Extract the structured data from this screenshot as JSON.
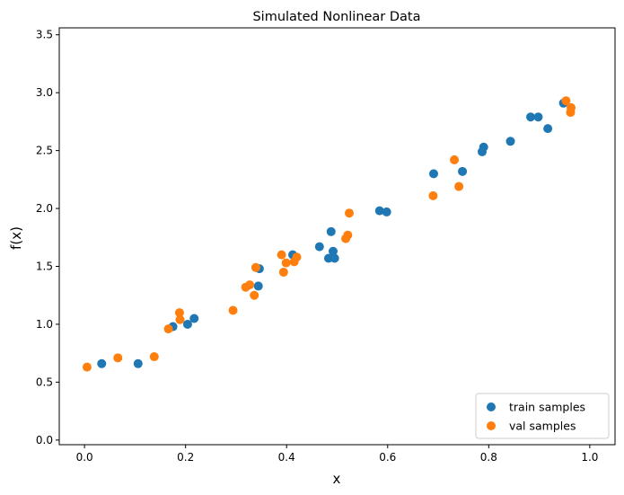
{
  "chart_data": {
    "type": "scatter",
    "title": "Simulated Nonlinear Data",
    "xlabel": "x",
    "ylabel": "f(x)",
    "xlim": [
      -0.05,
      1.05
    ],
    "ylim": [
      -0.04,
      3.56
    ],
    "xticks": [
      0.0,
      0.2,
      0.4,
      0.6,
      0.8,
      1.0
    ],
    "xtick_labels": [
      "0.0",
      "0.2",
      "0.4",
      "0.6",
      "0.8",
      "1.0"
    ],
    "yticks": [
      0.0,
      0.5,
      1.0,
      1.5,
      2.0,
      2.5,
      3.0,
      3.5
    ],
    "ytick_labels": [
      "0.0",
      "0.5",
      "1.0",
      "1.5",
      "2.0",
      "2.5",
      "3.0",
      "3.5"
    ],
    "grid": false,
    "legend": {
      "placement": "lower-right"
    },
    "series": [
      {
        "name": "train samples",
        "color": "#1f77b4",
        "points": [
          [
            0.034,
            0.66
          ],
          [
            0.106,
            0.66
          ],
          [
            0.175,
            0.98
          ],
          [
            0.204,
            1.0
          ],
          [
            0.217,
            1.05
          ],
          [
            0.344,
            1.33
          ],
          [
            0.346,
            1.48
          ],
          [
            0.412,
            1.6
          ],
          [
            0.465,
            1.67
          ],
          [
            0.483,
            1.57
          ],
          [
            0.488,
            1.8
          ],
          [
            0.492,
            1.63
          ],
          [
            0.495,
            1.57
          ],
          [
            0.584,
            1.98
          ],
          [
            0.598,
            1.97
          ],
          [
            0.691,
            2.3
          ],
          [
            0.748,
            2.32
          ],
          [
            0.787,
            2.49
          ],
          [
            0.79,
            2.53
          ],
          [
            0.843,
            2.58
          ],
          [
            0.883,
            2.79
          ],
          [
            0.898,
            2.79
          ],
          [
            0.917,
            2.69
          ],
          [
            0.948,
            2.91
          ]
        ]
      },
      {
        "name": "val samples",
        "color": "#ff7f0e",
        "points": [
          [
            0.005,
            0.63
          ],
          [
            0.066,
            0.71
          ],
          [
            0.138,
            0.72
          ],
          [
            0.166,
            0.96
          ],
          [
            0.188,
            1.1
          ],
          [
            0.189,
            1.04
          ],
          [
            0.294,
            1.12
          ],
          [
            0.319,
            1.32
          ],
          [
            0.327,
            1.34
          ],
          [
            0.336,
            1.25
          ],
          [
            0.339,
            1.49
          ],
          [
            0.39,
            1.6
          ],
          [
            0.394,
            1.45
          ],
          [
            0.399,
            1.53
          ],
          [
            0.415,
            1.54
          ],
          [
            0.42,
            1.58
          ],
          [
            0.517,
            1.74
          ],
          [
            0.521,
            1.77
          ],
          [
            0.524,
            1.96
          ],
          [
            0.69,
            2.11
          ],
          [
            0.732,
            2.42
          ],
          [
            0.741,
            2.19
          ],
          [
            0.953,
            2.93
          ],
          [
            0.962,
            2.83
          ],
          [
            0.963,
            2.87
          ]
        ]
      }
    ]
  }
}
